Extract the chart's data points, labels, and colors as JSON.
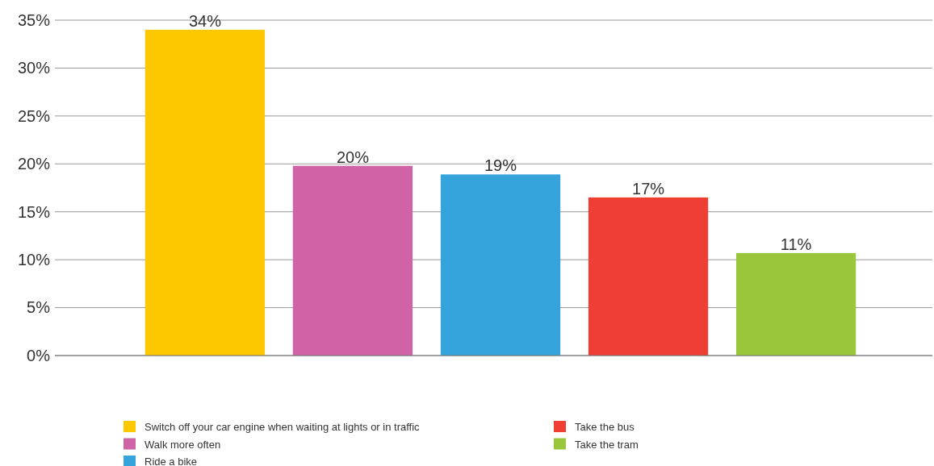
{
  "chart_data": {
    "type": "bar",
    "categories": [
      null,
      null,
      null,
      null,
      null
    ],
    "series": [
      {
        "name": "Switch off your car engine when waiting at lights or in traffic",
        "color": "#fdc800",
        "values": [
          34,
          null,
          null,
          null,
          null
        ],
        "value_labels": [
          "34%",
          null,
          null,
          null,
          null
        ]
      },
      {
        "name": "Walk more often",
        "color": "#d063a6",
        "values": [
          null,
          19.8,
          null,
          null,
          null
        ],
        "value_labels": [
          null,
          "20%",
          null,
          null,
          null
        ]
      },
      {
        "name": "Ride a bike",
        "color": "#35a3dc",
        "values": [
          null,
          null,
          18.9,
          null,
          null
        ],
        "value_labels": [
          null,
          null,
          "19%",
          null,
          null
        ]
      },
      {
        "name": "Take the bus",
        "color": "#ef3e33",
        "values": [
          null,
          null,
          null,
          16.5,
          null
        ],
        "value_labels": [
          null,
          null,
          null,
          "17%",
          null
        ]
      },
      {
        "name": "Take the tram",
        "color": "#9ac63c",
        "values": [
          null,
          null,
          null,
          null,
          10.7
        ],
        "value_labels": [
          null,
          null,
          null,
          null,
          "11%"
        ]
      }
    ],
    "ylim": [
      0,
      35
    ],
    "yticks": [
      {
        "value": 0,
        "label": "0%"
      },
      {
        "value": 5,
        "label": "5%"
      },
      {
        "value": 10,
        "label": "10%"
      },
      {
        "value": 15,
        "label": "15%"
      },
      {
        "value": 20,
        "label": "20%"
      },
      {
        "value": 25,
        "label": "25%"
      },
      {
        "value": 30,
        "label": "30%"
      },
      {
        "value": 35,
        "label": "35%"
      }
    ],
    "grid": "y",
    "legend": "bottom"
  }
}
